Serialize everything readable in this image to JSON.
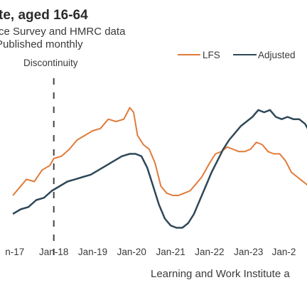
{
  "chart_data": {
    "type": "line",
    "title": "te, aged 16-64",
    "subtitle_lines": [
      "ce Survey and HMRC data",
      "Published monthly"
    ],
    "x_ticks": [
      "n-17",
      "Jan-18",
      "Jan-19",
      "Jan-20",
      "Jan-21",
      "Jan-22",
      "Jan-23",
      "Jan-2"
    ],
    "x_tick_years": [
      2017,
      2018,
      2019,
      2020,
      2021,
      2022,
      2023,
      2024
    ],
    "annotation": {
      "label": "Discontinuity",
      "x": 2018
    },
    "colors": {
      "LFS": "#e07b39",
      "Adjusted": "#2f4858"
    },
    "series": [
      {
        "name": "LFS",
        "x": [
          2016.95,
          2017.1,
          2017.3,
          2017.5,
          2017.7,
          2017.9,
          2018.0,
          2018.2,
          2018.4,
          2018.6,
          2018.8,
          2019.0,
          2019.2,
          2019.4,
          2019.6,
          2019.8,
          2019.95,
          2020.05,
          2020.15,
          2020.3,
          2020.45,
          2020.6,
          2020.75,
          2020.9,
          2021.05,
          2021.2,
          2021.35,
          2021.5,
          2021.65,
          2021.8,
          2022.0,
          2022.15,
          2022.3,
          2022.45,
          2022.6,
          2022.75,
          2022.9,
          2023.05,
          2023.2,
          2023.35,
          2023.5,
          2023.65,
          2023.8,
          2023.95,
          2024.1,
          2024.25,
          2024.4,
          2024.55
        ],
        "y": [
          50,
          51.5,
          53.5,
          53,
          55.5,
          56.5,
          58,
          58.5,
          60,
          62,
          63,
          64,
          64.5,
          66.5,
          66,
          66.5,
          69,
          68,
          63,
          61,
          60,
          57,
          52,
          50.5,
          50,
          50,
          50.5,
          51,
          52.5,
          54,
          57,
          59,
          59.5,
          60.5,
          60,
          59.5,
          59.5,
          60,
          61.5,
          61,
          59.5,
          59,
          59,
          57.5,
          55,
          54,
          53,
          52
        ]
      },
      {
        "name": "Adjusted",
        "x": [
          2016.95,
          2017.15,
          2017.35,
          2017.55,
          2017.75,
          2017.95,
          2018.15,
          2018.35,
          2018.55,
          2018.75,
          2018.95,
          2019.15,
          2019.35,
          2019.55,
          2019.75,
          2019.95,
          2020.1,
          2020.25,
          2020.4,
          2020.55,
          2020.7,
          2020.85,
          2021.0,
          2021.15,
          2021.3,
          2021.45,
          2021.6,
          2021.75,
          2021.9,
          2022.05,
          2022.2,
          2022.35,
          2022.5,
          2022.65,
          2022.8,
          2022.95,
          2023.1,
          2023.25,
          2023.4,
          2023.55,
          2023.7,
          2023.85,
          2024.0,
          2024.15,
          2024.3,
          2024.45,
          2024.55
        ],
        "y": [
          46,
          47,
          47.5,
          49,
          49.5,
          51,
          52,
          53,
          53.5,
          54,
          54.5,
          55.5,
          56.5,
          57.5,
          58.5,
          59,
          59,
          58.5,
          56,
          52,
          48,
          45,
          43.5,
          43,
          43,
          44,
          46,
          49,
          52,
          55,
          57.5,
          60,
          62,
          63.5,
          65,
          66,
          67,
          68.5,
          68,
          68.5,
          67,
          66.5,
          67,
          66.5,
          66.5,
          65.5,
          64
        ]
      }
    ],
    "xlim": [
      2016.62,
      2024.5
    ],
    "ylim": [
      36,
      80
    ],
    "source": "Learning and Work Institute a"
  }
}
